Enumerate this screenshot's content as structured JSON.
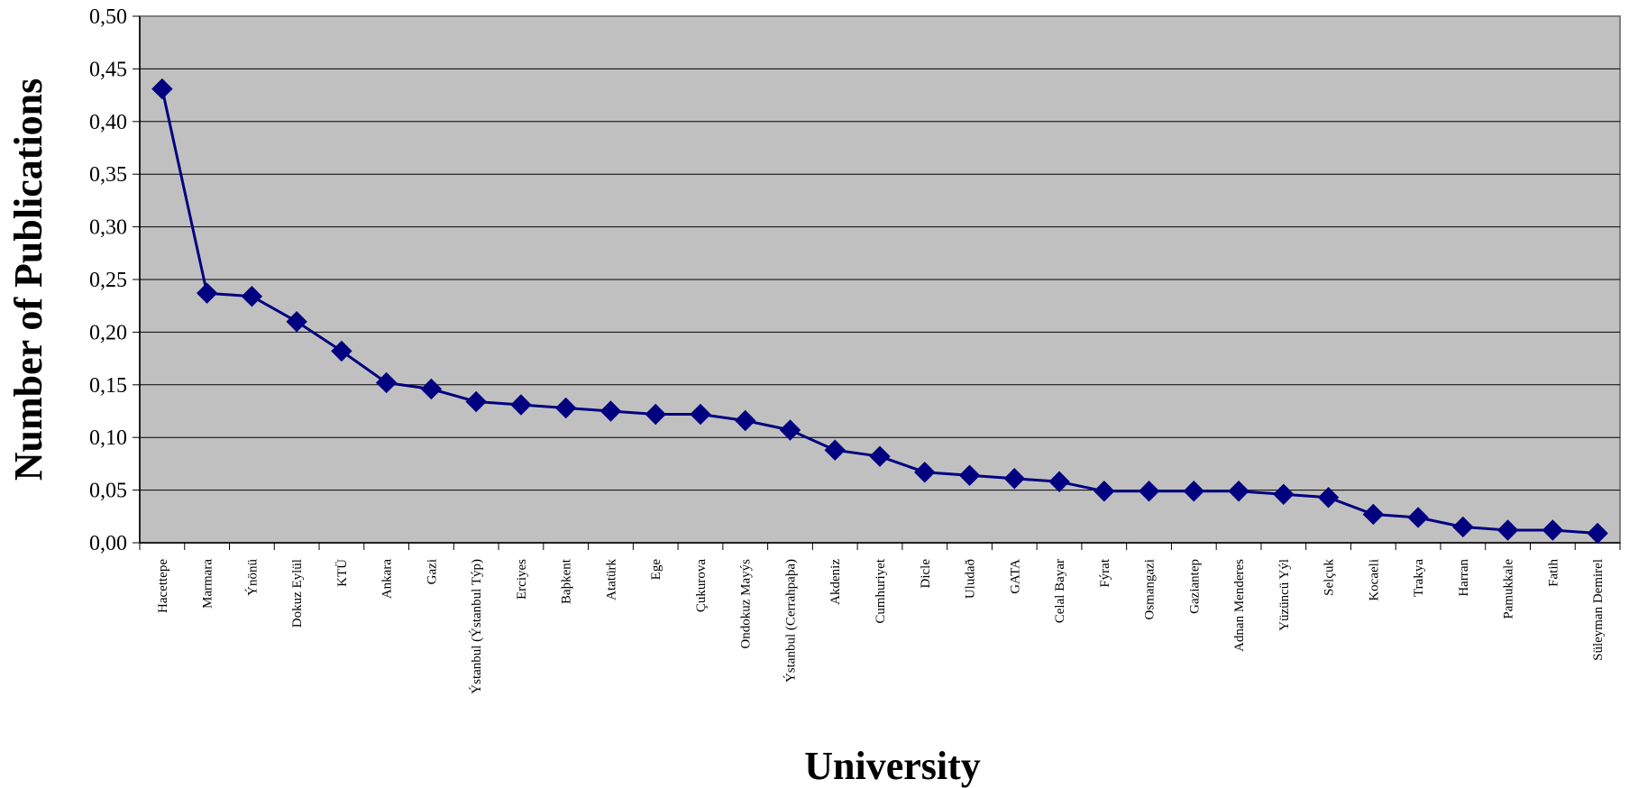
{
  "chart_data": {
    "type": "line",
    "xlabel": "University",
    "ylabel": "Number of Publications",
    "ylim": [
      0,
      0.5
    ],
    "ytick_step": 0.05,
    "ytick_labels": [
      "0,00",
      "0,05",
      "0,10",
      "0,15",
      "0,20",
      "0,25",
      "0,30",
      "0,35",
      "0,40",
      "0,45",
      "0,50"
    ],
    "grid": true,
    "legend": "none",
    "colors": {
      "plot_background": "#c0c0c0",
      "line": "#000080",
      "marker": "#000080",
      "grid": "#000000"
    },
    "marker": "diamond",
    "categories": [
      "Hacettepe",
      "Marmara",
      "Ýnönü",
      "Dokuz Eylül",
      "KTÜ",
      "Ankara",
      "Gazi",
      "Ýstanbul (Ýstanbul Týp)",
      "Erciyes",
      "Baþkent",
      "Atatürk",
      "Ege",
      "Çukurova",
      "Ondokuz Mayýs",
      "Ýstanbul (Cerrahpaþa)",
      "Akdeniz",
      "Cumhuriyet",
      "Dicle",
      "Uludað",
      "GATA",
      "Celal Bayar",
      "Fýrat",
      "Osmangazi",
      "Gaziantep",
      "Adnan Menderes",
      "Yüzüncü Yýl",
      "Selçuk",
      "Kocaeli",
      "Trakya",
      "Harran",
      "Pamukkale",
      "Fatih",
      "Süleyman Demirel"
    ],
    "values": [
      0.431,
      0.237,
      0.234,
      0.21,
      0.182,
      0.152,
      0.146,
      0.134,
      0.131,
      0.128,
      0.125,
      0.122,
      0.122,
      0.116,
      0.107,
      0.088,
      0.082,
      0.067,
      0.064,
      0.061,
      0.058,
      0.049,
      0.049,
      0.049,
      0.049,
      0.046,
      0.043,
      0.027,
      0.024,
      0.015,
      0.012,
      0.012,
      0.009
    ]
  }
}
